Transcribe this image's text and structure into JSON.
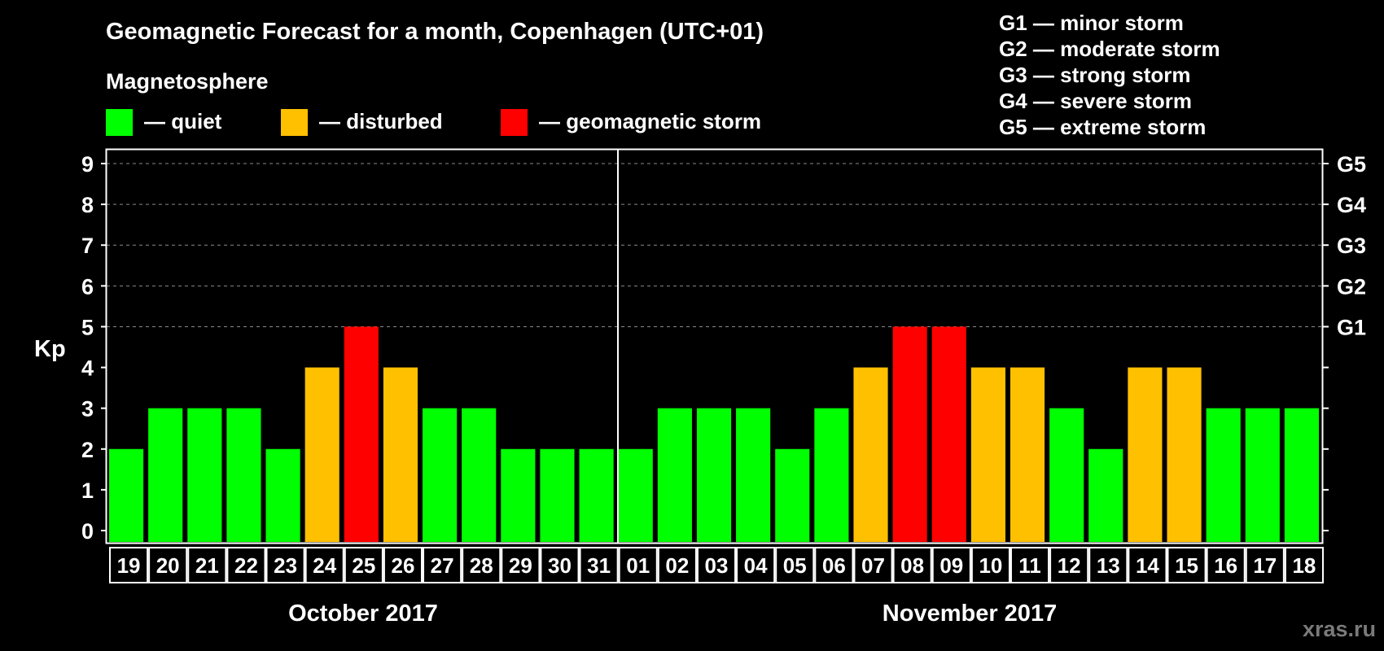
{
  "title": "Geomagnetic Forecast for a month, Copenhagen (UTC+01)",
  "legend": {
    "heading": "Magnetosphere",
    "items": [
      {
        "label": "— quiet",
        "color": "#00ff00"
      },
      {
        "label": "— disturbed",
        "color": "#ffc000"
      },
      {
        "label": "— geomagnetic storm",
        "color": "#ff0000"
      }
    ]
  },
  "storm_scale": [
    "G1 — minor storm",
    "G2 — moderate storm",
    "G3 — strong storm",
    "G4 — severe storm",
    "G5 — extreme storm"
  ],
  "watermark": "xras.ru",
  "colors": {
    "quiet": "#00ff00",
    "disturbed": "#ffc000",
    "storm": "#ff0000",
    "background": "#000000",
    "foreground": "#ffffff"
  },
  "chart_data": {
    "type": "bar",
    "ylabel": "Kp",
    "ylim": [
      0,
      9
    ],
    "yticks": [
      "0",
      "1",
      "2",
      "3",
      "4",
      "5",
      "6",
      "7",
      "8",
      "9"
    ],
    "right_axis_labels": [
      {
        "value": 5,
        "label": "G1"
      },
      {
        "value": 6,
        "label": "G2"
      },
      {
        "value": 7,
        "label": "G3"
      },
      {
        "value": 8,
        "label": "G4"
      },
      {
        "value": 9,
        "label": "G5"
      }
    ],
    "grid": "dashed horizontal",
    "months": [
      {
        "label": "October 2017",
        "days": [
          "19",
          "20",
          "21",
          "22",
          "23",
          "24",
          "25",
          "26",
          "27",
          "28",
          "29",
          "30",
          "31"
        ]
      },
      {
        "label": "November 2017",
        "days": [
          "01",
          "02",
          "03",
          "04",
          "05",
          "06",
          "07",
          "08",
          "09",
          "10",
          "11",
          "12",
          "13",
          "14",
          "15",
          "16",
          "17",
          "18"
        ]
      }
    ],
    "categories": [
      "19",
      "20",
      "21",
      "22",
      "23",
      "24",
      "25",
      "26",
      "27",
      "28",
      "29",
      "30",
      "31",
      "01",
      "02",
      "03",
      "04",
      "05",
      "06",
      "07",
      "08",
      "09",
      "10",
      "11",
      "12",
      "13",
      "14",
      "15",
      "16",
      "17",
      "18"
    ],
    "values": [
      2,
      3,
      3,
      3,
      2,
      4,
      5,
      4,
      3,
      3,
      2,
      2,
      2,
      2,
      3,
      3,
      3,
      2,
      3,
      4,
      5,
      5,
      4,
      4,
      3,
      2,
      4,
      4,
      3,
      3,
      3
    ],
    "levels": [
      "quiet",
      "quiet",
      "quiet",
      "quiet",
      "quiet",
      "disturbed",
      "storm",
      "disturbed",
      "quiet",
      "quiet",
      "quiet",
      "quiet",
      "quiet",
      "quiet",
      "quiet",
      "quiet",
      "quiet",
      "quiet",
      "quiet",
      "disturbed",
      "storm",
      "storm",
      "disturbed",
      "disturbed",
      "quiet",
      "quiet",
      "disturbed",
      "disturbed",
      "quiet",
      "quiet",
      "quiet"
    ]
  }
}
